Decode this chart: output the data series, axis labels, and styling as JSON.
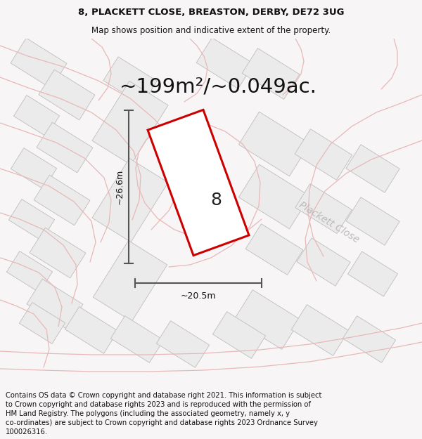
{
  "title_line1": "8, PLACKETT CLOSE, BREASTON, DERBY, DE72 3UG",
  "title_line2": "Map shows position and indicative extent of the property.",
  "area_text": "~199m²/~0.049ac.",
  "number_label": "8",
  "dim_width": "~20.5m",
  "dim_height": "~26.6m",
  "road_label": "Plackett Close",
  "footer_lines": [
    "Contains OS data © Crown copyright and database right 2021. This information is subject",
    "to Crown copyright and database rights 2023 and is reproduced with the permission of",
    "HM Land Registry. The polygons (including the associated geometry, namely x, y",
    "co-ordinates) are subject to Crown copyright and database rights 2023 Ordnance Survey",
    "100026316."
  ],
  "bg_color": "#f7f5f5",
  "map_bg": "#f9f7f7",
  "plot_fill": "#ffffff",
  "plot_edge": "#cc0000",
  "bldg_face": "#ebebeb",
  "bldg_edge": "#c0bcbc",
  "light_red": "#e8b8b8",
  "dim_line_color": "#555555",
  "road_label_color": "#bbbbbb",
  "title_fontsize": 9.5,
  "subtitle_fontsize": 8.5,
  "area_fontsize": 21,
  "footer_fontsize": 7.2,
  "road_label_fontsize": 10,
  "number_fontsize": 18,
  "dim_fontsize": 9
}
